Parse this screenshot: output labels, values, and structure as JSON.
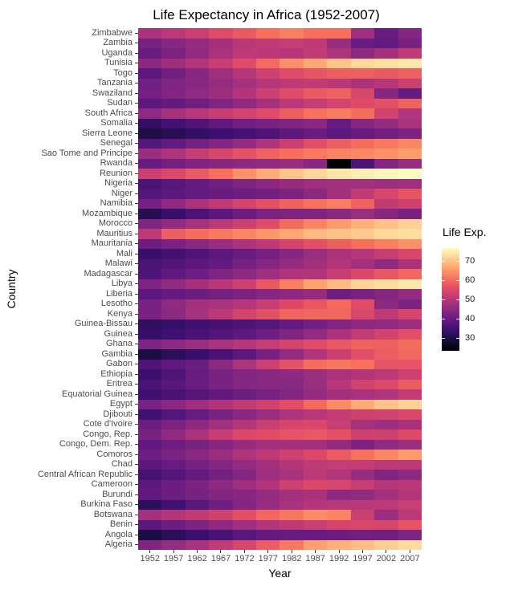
{
  "title": "Life Expectancy in Africa (1952-2007)",
  "axes": {
    "x_label": "Year",
    "y_label": "Country"
  },
  "legend": {
    "title": "Life Exp.",
    "ticks": [
      70,
      60,
      50,
      40,
      30
    ]
  },
  "color_scale": {
    "name": "magma",
    "domain": [
      23.6,
      76.4
    ],
    "stops": [
      "#000004",
      "#140e36",
      "#3b0f70",
      "#641a80",
      "#8c2981",
      "#b73779",
      "#de4968",
      "#f7705c",
      "#fe9f6d",
      "#fecf92",
      "#fcfdbf"
    ]
  },
  "chart_data": {
    "type": "heatmap",
    "title": "Life Expectancy in Africa (1952-2007)",
    "xlabel": "Year",
    "ylabel": "Country",
    "value_label": "Life Exp.",
    "value_range": [
      23.6,
      76.4
    ],
    "legend_position": "right",
    "grid": false,
    "x": [
      1952,
      1957,
      1962,
      1967,
      1972,
      1977,
      1982,
      1987,
      1992,
      1997,
      2002,
      2007
    ],
    "y": [
      "Zimbabwe",
      "Zambia",
      "Uganda",
      "Tunisia",
      "Togo",
      "Tanzania",
      "Swaziland",
      "Sudan",
      "South Africa",
      "Somalia",
      "Sierra Leone",
      "Senegal",
      "Sao Tome and Principe",
      "Rwanda",
      "Reunion",
      "Nigeria",
      "Niger",
      "Namibia",
      "Mozambique",
      "Morocco",
      "Mauritius",
      "Mauritania",
      "Mali",
      "Malawi",
      "Madagascar",
      "Libya",
      "Liberia",
      "Lesotho",
      "Kenya",
      "Guinea-Bissau",
      "Guinea",
      "Ghana",
      "Gambia",
      "Gabon",
      "Ethiopia",
      "Eritrea",
      "Equatorial Guinea",
      "Egypt",
      "Djibouti",
      "Cote d'Ivoire",
      "Congo, Rep.",
      "Congo, Dem. Rep.",
      "Comoros",
      "Chad",
      "Central African Republic",
      "Cameroon",
      "Burundi",
      "Burkina Faso",
      "Botswana",
      "Benin",
      "Angola",
      "Algeria"
    ],
    "values": [
      [
        48.5,
        50.5,
        52.4,
        55.6,
        57.7,
        60.4,
        62.4,
        60.4,
        60.4,
        46.8,
        40.0,
        43.5
      ],
      [
        42.0,
        44.1,
        46.0,
        47.8,
        50.1,
        51.4,
        51.8,
        50.8,
        46.1,
        40.2,
        39.2,
        42.4
      ],
      [
        40.0,
        42.6,
        45.3,
        48.1,
        51.0,
        50.4,
        49.8,
        51.5,
        48.8,
        44.6,
        47.8,
        51.5
      ],
      [
        44.6,
        47.1,
        49.6,
        52.1,
        55.6,
        59.8,
        64.0,
        66.9,
        70.0,
        72.0,
        73.0,
        73.9
      ],
      [
        38.6,
        41.2,
        43.9,
        46.8,
        49.8,
        52.9,
        55.5,
        56.9,
        58.1,
        58.4,
        57.6,
        58.4
      ],
      [
        41.2,
        43.0,
        44.2,
        45.8,
        47.6,
        49.9,
        50.6,
        51.5,
        50.4,
        48.5,
        49.7,
        52.5
      ],
      [
        41.4,
        43.4,
        45.0,
        46.6,
        49.6,
        52.5,
        55.6,
        57.7,
        58.5,
        54.3,
        43.9,
        39.6
      ],
      [
        38.6,
        39.6,
        40.9,
        42.9,
        45.1,
        47.8,
        50.3,
        51.7,
        53.6,
        55.4,
        56.4,
        58.6
      ],
      [
        45.0,
        48.0,
        50.0,
        51.9,
        53.7,
        55.5,
        58.2,
        60.8,
        61.9,
        60.2,
        53.4,
        49.3
      ],
      [
        33.0,
        35.0,
        37.0,
        39.0,
        41.0,
        42.0,
        43.0,
        44.5,
        39.7,
        43.8,
        45.9,
        48.2
      ],
      [
        30.3,
        31.6,
        32.8,
        34.1,
        35.4,
        36.8,
        38.4,
        40.0,
        38.3,
        39.9,
        41.0,
        42.6
      ],
      [
        37.3,
        39.3,
        41.5,
        43.6,
        45.8,
        48.9,
        52.4,
        55.8,
        58.2,
        60.2,
        61.6,
        63.1
      ],
      [
        46.5,
        48.9,
        51.9,
        54.4,
        56.5,
        58.6,
        60.4,
        61.7,
        62.7,
        63.3,
        64.3,
        65.5
      ],
      [
        40.0,
        41.5,
        43.0,
        44.1,
        44.6,
        45.0,
        46.2,
        44.0,
        23.6,
        36.1,
        43.4,
        46.2
      ],
      [
        52.7,
        55.1,
        57.7,
        60.5,
        64.3,
        67.1,
        69.9,
        71.9,
        73.6,
        74.8,
        75.7,
        76.4
      ],
      [
        36.3,
        37.8,
        39.4,
        41.0,
        42.8,
        44.5,
        45.8,
        46.9,
        47.5,
        47.5,
        46.6,
        46.9
      ],
      [
        37.4,
        38.6,
        39.5,
        40.1,
        40.5,
        41.3,
        42.6,
        44.6,
        47.4,
        51.3,
        54.5,
        56.9
      ],
      [
        41.7,
        45.2,
        48.4,
        51.2,
        53.9,
        56.4,
        59.0,
        60.8,
        62.0,
        58.9,
        51.5,
        52.9
      ],
      [
        31.3,
        33.8,
        36.2,
        38.1,
        40.3,
        42.5,
        42.8,
        42.9,
        44.3,
        46.3,
        44.0,
        42.1
      ],
      [
        42.9,
        45.4,
        47.9,
        50.3,
        52.9,
        55.7,
        59.7,
        62.7,
        65.4,
        67.7,
        69.6,
        71.2
      ],
      [
        51.0,
        58.1,
        60.2,
        61.6,
        62.9,
        64.9,
        66.7,
        68.7,
        69.7,
        70.7,
        72.0,
        72.8
      ],
      [
        40.5,
        42.3,
        44.2,
        46.3,
        48.4,
        50.9,
        53.6,
        56.1,
        58.3,
        60.4,
        62.2,
        64.2
      ],
      [
        33.7,
        35.3,
        36.9,
        38.5,
        40.0,
        41.7,
        43.9,
        46.4,
        48.4,
        49.9,
        51.8,
        54.5
      ],
      [
        36.3,
        37.2,
        38.4,
        39.5,
        41.8,
        43.8,
        45.6,
        47.5,
        49.4,
        47.5,
        45.0,
        48.3
      ],
      [
        36.7,
        38.9,
        40.8,
        42.9,
        44.9,
        46.9,
        49.0,
        49.4,
        52.2,
        55.0,
        57.3,
        59.4
      ],
      [
        42.7,
        45.3,
        47.8,
        50.2,
        52.8,
        57.4,
        62.2,
        66.2,
        68.8,
        71.6,
        72.7,
        74.0
      ],
      [
        38.5,
        39.5,
        40.5,
        41.5,
        42.6,
        43.8,
        44.9,
        46.0,
        40.8,
        42.2,
        43.8,
        45.7
      ],
      [
        42.1,
        45.0,
        47.7,
        48.5,
        49.8,
        52.2,
        55.1,
        57.2,
        59.7,
        55.6,
        44.6,
        42.6
      ],
      [
        42.3,
        44.7,
        47.9,
        50.7,
        53.6,
        56.2,
        58.8,
        59.3,
        59.3,
        54.4,
        51.0,
        54.1
      ],
      [
        32.5,
        33.5,
        34.5,
        35.5,
        36.5,
        37.5,
        39.3,
        41.2,
        43.3,
        44.9,
        45.5,
        46.4
      ],
      [
        33.6,
        34.6,
        35.8,
        37.2,
        38.8,
        40.8,
        42.9,
        45.6,
        48.6,
        51.5,
        53.7,
        56.0
      ],
      [
        43.1,
        44.8,
        46.5,
        48.1,
        49.9,
        51.8,
        53.7,
        55.7,
        57.5,
        58.6,
        58.5,
        60.0
      ],
      [
        30.0,
        32.1,
        33.9,
        35.9,
        38.3,
        41.8,
        45.6,
        49.3,
        52.6,
        55.9,
        58.0,
        59.4
      ],
      [
        37.0,
        39.0,
        40.5,
        44.6,
        48.7,
        52.8,
        56.6,
        60.2,
        61.4,
        60.5,
        56.8,
        56.7
      ],
      [
        34.1,
        36.7,
        40.1,
        42.1,
        43.5,
        44.5,
        44.9,
        46.7,
        48.1,
        49.4,
        50.7,
        52.9
      ],
      [
        35.9,
        38.0,
        40.2,
        42.2,
        44.1,
        44.5,
        43.9,
        46.5,
        50.0,
        53.4,
        55.2,
        58.0
      ],
      [
        34.5,
        36.0,
        37.5,
        39.0,
        40.5,
        42.0,
        43.7,
        45.7,
        47.5,
        48.2,
        49.3,
        51.6
      ],
      [
        41.9,
        44.4,
        47.0,
        49.3,
        51.1,
        53.3,
        56.0,
        59.8,
        63.7,
        67.2,
        69.8,
        71.3
      ],
      [
        34.8,
        37.3,
        39.7,
        42.1,
        44.4,
        46.5,
        48.8,
        50.0,
        51.6,
        53.2,
        53.4,
        54.8
      ],
      [
        40.5,
        42.5,
        44.9,
        47.4,
        49.8,
        52.4,
        54.0,
        54.7,
        52.0,
        48.0,
        46.8,
        48.3
      ],
      [
        42.1,
        45.1,
        48.4,
        52.0,
        54.9,
        55.6,
        56.7,
        57.5,
        56.4,
        53.0,
        53.0,
        55.3
      ],
      [
        39.1,
        40.7,
        42.1,
        44.1,
        46.0,
        47.8,
        47.8,
        47.4,
        45.5,
        42.6,
        45.0,
        46.5
      ],
      [
        40.7,
        42.5,
        44.5,
        46.5,
        48.9,
        50.9,
        52.9,
        54.9,
        57.9,
        60.7,
        63.0,
        65.2
      ],
      [
        38.1,
        39.9,
        41.7,
        43.6,
        45.6,
        47.4,
        49.5,
        51.1,
        51.7,
        51.6,
        50.5,
        50.7
      ],
      [
        35.5,
        37.5,
        39.5,
        41.5,
        43.5,
        46.8,
        48.3,
        50.5,
        49.4,
        46.1,
        43.3,
        44.7
      ],
      [
        38.5,
        40.4,
        42.6,
        44.8,
        47.0,
        49.4,
        53.0,
        55.0,
        54.3,
        52.2,
        49.9,
        50.4
      ],
      [
        39.0,
        40.5,
        42.0,
        43.5,
        44.1,
        45.9,
        47.5,
        48.2,
        44.7,
        45.3,
        47.4,
        49.6
      ],
      [
        32.0,
        34.9,
        37.8,
        40.7,
        43.6,
        46.1,
        48.1,
        49.6,
        50.3,
        50.3,
        50.7,
        52.3
      ],
      [
        47.6,
        49.6,
        51.5,
        53.3,
        56.0,
        59.3,
        61.5,
        63.6,
        62.7,
        52.6,
        46.6,
        50.7
      ],
      [
        38.2,
        40.4,
        42.6,
        44.9,
        47.0,
        49.2,
        50.9,
        52.3,
        53.9,
        54.8,
        54.4,
        56.7
      ],
      [
        30.0,
        32.0,
        34.0,
        36.0,
        37.9,
        39.5,
        39.9,
        39.9,
        40.6,
        41.0,
        41.0,
        42.7
      ],
      [
        43.1,
        45.7,
        48.3,
        51.4,
        54.5,
        58.0,
        61.4,
        65.8,
        67.7,
        69.2,
        71.0,
        72.3
      ]
    ]
  }
}
